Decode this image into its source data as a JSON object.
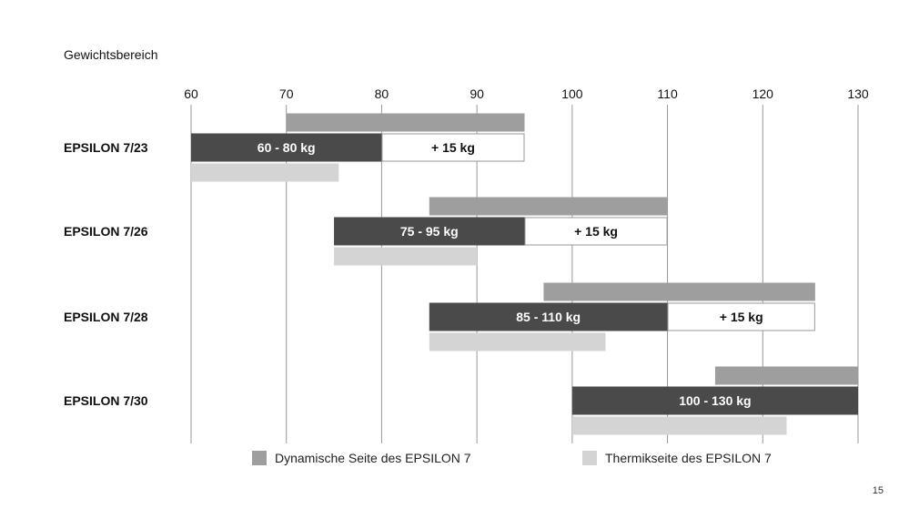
{
  "chart_data": {
    "type": "bar",
    "title": "Gewichtsbereich",
    "x_ticks": [
      60,
      70,
      80,
      90,
      100,
      110,
      120,
      130
    ],
    "xlim": [
      60,
      130
    ],
    "grid": true,
    "legend_position": "bottom",
    "colors": {
      "dynamic": "#9e9e9e",
      "weight": "#4a4a4a",
      "extra": "#ffffff",
      "thermal": "#d4d4d4",
      "grid": "#999999"
    },
    "legend": [
      {
        "key": "dynamic",
        "label": "Dynamische Seite des EPSILON 7"
      },
      {
        "key": "thermal",
        "label": "Thermikseite des EPSILON 7"
      }
    ],
    "rows": [
      {
        "name": "EPSILON 7/23",
        "dynamic": [
          70,
          95
        ],
        "weight": [
          60,
          80
        ],
        "weight_label": "60 - 80 kg",
        "extra": [
          80,
          95
        ],
        "extra_label": "+ 15 kg",
        "thermal": [
          60,
          75.5
        ]
      },
      {
        "name": "EPSILON 7/26",
        "dynamic": [
          85,
          110
        ],
        "weight": [
          75,
          95
        ],
        "weight_label": "75 - 95 kg",
        "extra": [
          95,
          110
        ],
        "extra_label": "+ 15 kg",
        "thermal": [
          75,
          90
        ]
      },
      {
        "name": "EPSILON 7/28",
        "dynamic": [
          97,
          125.5
        ],
        "weight": [
          85,
          110
        ],
        "weight_label": "85 - 110 kg",
        "extra": [
          110,
          125.5
        ],
        "extra_label": "+ 15 kg",
        "thermal": [
          85,
          103.5
        ]
      },
      {
        "name": "EPSILON 7/30",
        "dynamic": [
          115,
          130
        ],
        "weight": [
          100,
          130
        ],
        "weight_label": "100 - 130 kg",
        "extra": null,
        "extra_label": "",
        "thermal": [
          100,
          122.5
        ]
      }
    ]
  },
  "page_number": "15"
}
